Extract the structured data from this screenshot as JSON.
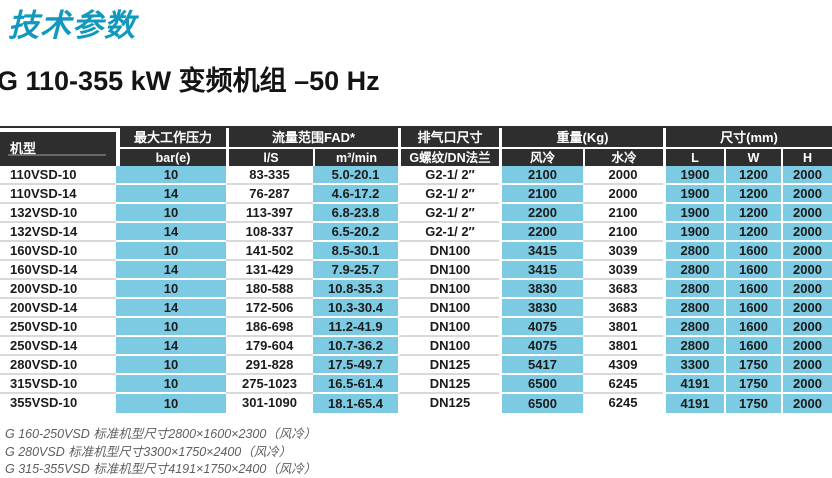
{
  "page": {
    "title": "技术参数",
    "subtitle": "G 110-355 kW 变频机组 –50 Hz"
  },
  "colors": {
    "accent_teal": "#1199bd",
    "header_dark": "#2e2e2e",
    "cell_blue": "#7dcae3"
  },
  "table": {
    "header": {
      "model": "机型",
      "groups": [
        {
          "label": "最大工作压力",
          "sub": [
            "bar(e)"
          ]
        },
        {
          "label": "流量范围FAD*",
          "sub": [
            "l/S",
            "m³/min"
          ]
        },
        {
          "label": "排气口尺寸",
          "sub": [
            "G螺纹/DN法兰"
          ]
        },
        {
          "label": "重量(Kg)",
          "sub": [
            "风冷",
            "水冷"
          ]
        },
        {
          "label": "尺寸(mm)",
          "sub": [
            "L",
            "W",
            "H"
          ]
        }
      ]
    },
    "rows": [
      [
        "110VSD-10",
        "10",
        "83-335",
        "5.0-20.1",
        "G2-1/ 2″",
        "2100",
        "2000",
        "1900",
        "1200",
        "2000"
      ],
      [
        "110VSD-14",
        "14",
        "76-287",
        "4.6-17.2",
        "G2-1/ 2″",
        "2100",
        "2000",
        "1900",
        "1200",
        "2000"
      ],
      [
        "132VSD-10",
        "10",
        "113-397",
        "6.8-23.8",
        "G2-1/ 2″",
        "2200",
        "2100",
        "1900",
        "1200",
        "2000"
      ],
      [
        "132VSD-14",
        "14",
        "108-337",
        "6.5-20.2",
        "G2-1/ 2″",
        "2200",
        "2100",
        "1900",
        "1200",
        "2000"
      ],
      [
        "160VSD-10",
        "10",
        "141-502",
        "8.5-30.1",
        "DN100",
        "3415",
        "3039",
        "2800",
        "1600",
        "2000"
      ],
      [
        "160VSD-14",
        "14",
        "131-429",
        "7.9-25.7",
        "DN100",
        "3415",
        "3039",
        "2800",
        "1600",
        "2000"
      ],
      [
        "200VSD-10",
        "10",
        "180-588",
        "10.8-35.3",
        "DN100",
        "3830",
        "3683",
        "2800",
        "1600",
        "2000"
      ],
      [
        "200VSD-14",
        "14",
        "172-506",
        "10.3-30.4",
        "DN100",
        "3830",
        "3683",
        "2800",
        "1600",
        "2000"
      ],
      [
        "250VSD-10",
        "10",
        "186-698",
        "11.2-41.9",
        "DN100",
        "4075",
        "3801",
        "2800",
        "1600",
        "2000"
      ],
      [
        "250VSD-14",
        "14",
        "179-604",
        "10.7-36.2",
        "DN100",
        "4075",
        "3801",
        "2800",
        "1600",
        "2000"
      ],
      [
        "280VSD-10",
        "10",
        "291-828",
        "17.5-49.7",
        "DN125",
        "5417",
        "4309",
        "3300",
        "1750",
        "2000"
      ],
      [
        "315VSD-10",
        "10",
        "275-1023",
        "16.5-61.4",
        "DN125",
        "6500",
        "6245",
        "4191",
        "1750",
        "2000"
      ],
      [
        "355VSD-10",
        "10",
        "301-1090",
        "18.1-65.4",
        "DN125",
        "6500",
        "6245",
        "4191",
        "1750",
        "2000"
      ]
    ]
  },
  "notes": [
    "G 160-250VSD 标准机型尺寸2800×1600×2300（风冷）",
    "G 280VSD 标准机型尺寸3300×1750×2400（风冷）",
    "G 315-355VSD 标准机型尺寸4191×1750×2400（风冷）"
  ]
}
